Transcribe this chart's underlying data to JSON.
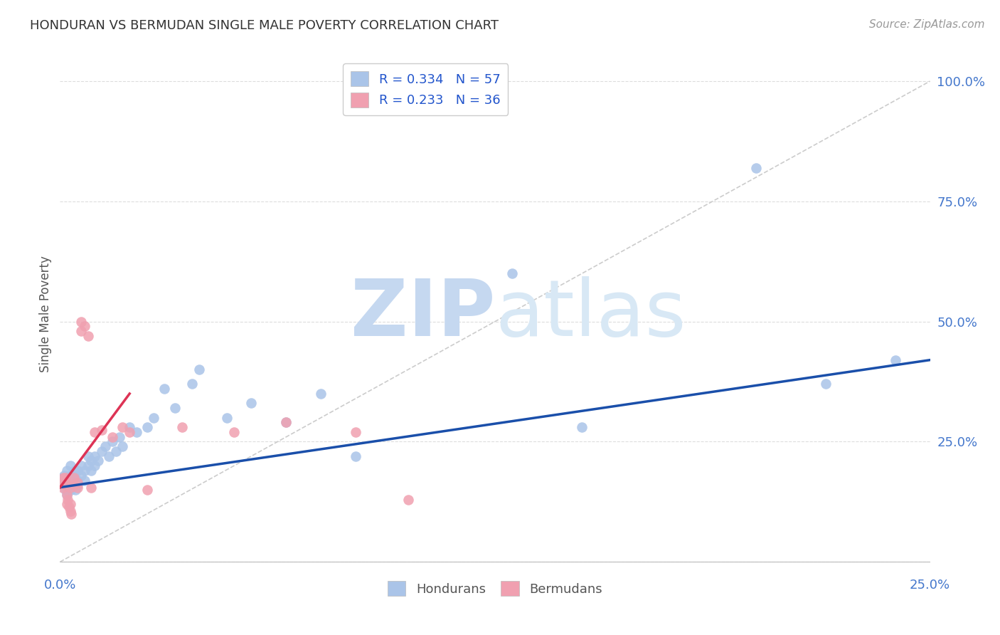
{
  "title": "HONDURAN VS BERMUDAN SINGLE MALE POVERTY CORRELATION CHART",
  "source": "Source: ZipAtlas.com",
  "ylabel": "Single Male Poverty",
  "background_color": "#ffffff",
  "grid_color": "#dddddd",
  "honduran_color": "#aac4e8",
  "bermudan_color": "#f0a0b0",
  "honduran_line_color": "#1a4faa",
  "bermudan_line_color": "#dd3355",
  "R_honduran": 0.334,
  "N_honduran": 57,
  "R_bermudan": 0.233,
  "N_bermudan": 36,
  "legend_text_color": "#2255cc",
  "axis_color": "#4477cc",
  "title_color": "#333333",
  "xlim": [
    0.0,
    0.25
  ],
  "ylim": [
    -0.02,
    1.05
  ],
  "honduran_scatter_x": [
    0.0008,
    0.001,
    0.0012,
    0.0015,
    0.0015,
    0.002,
    0.002,
    0.0022,
    0.0025,
    0.003,
    0.003,
    0.003,
    0.0032,
    0.0035,
    0.004,
    0.004,
    0.0042,
    0.0045,
    0.005,
    0.005,
    0.005,
    0.006,
    0.006,
    0.007,
    0.007,
    0.008,
    0.008,
    0.009,
    0.009,
    0.01,
    0.01,
    0.011,
    0.012,
    0.013,
    0.014,
    0.015,
    0.016,
    0.017,
    0.018,
    0.02,
    0.022,
    0.025,
    0.027,
    0.03,
    0.033,
    0.038,
    0.04,
    0.048,
    0.055,
    0.065,
    0.075,
    0.085,
    0.13,
    0.15,
    0.2,
    0.22,
    0.24
  ],
  "honduran_scatter_y": [
    0.175,
    0.16,
    0.18,
    0.15,
    0.17,
    0.14,
    0.19,
    0.16,
    0.15,
    0.18,
    0.16,
    0.2,
    0.15,
    0.17,
    0.16,
    0.18,
    0.19,
    0.15,
    0.17,
    0.16,
    0.19,
    0.18,
    0.2,
    0.17,
    0.19,
    0.2,
    0.22,
    0.19,
    0.21,
    0.2,
    0.22,
    0.21,
    0.23,
    0.24,
    0.22,
    0.25,
    0.23,
    0.26,
    0.24,
    0.28,
    0.27,
    0.28,
    0.3,
    0.36,
    0.32,
    0.37,
    0.4,
    0.3,
    0.33,
    0.29,
    0.35,
    0.22,
    0.6,
    0.28,
    0.82,
    0.37,
    0.42
  ],
  "bermudan_scatter_x": [
    0.0005,
    0.0008,
    0.001,
    0.001,
    0.0012,
    0.0015,
    0.0015,
    0.002,
    0.002,
    0.002,
    0.0022,
    0.0025,
    0.003,
    0.003,
    0.003,
    0.0032,
    0.004,
    0.004,
    0.005,
    0.005,
    0.006,
    0.006,
    0.007,
    0.008,
    0.009,
    0.01,
    0.012,
    0.015,
    0.018,
    0.02,
    0.025,
    0.035,
    0.05,
    0.065,
    0.085,
    0.1
  ],
  "bermudan_scatter_y": [
    0.165,
    0.155,
    0.17,
    0.175,
    0.16,
    0.17,
    0.175,
    0.16,
    0.14,
    0.12,
    0.13,
    0.115,
    0.155,
    0.12,
    0.105,
    0.1,
    0.175,
    0.16,
    0.155,
    0.165,
    0.5,
    0.48,
    0.49,
    0.47,
    0.155,
    0.27,
    0.275,
    0.26,
    0.28,
    0.27,
    0.15,
    0.28,
    0.27,
    0.29,
    0.27,
    0.13
  ],
  "honduran_line_x": [
    0.0,
    0.25
  ],
  "honduran_line_y": [
    0.155,
    0.42
  ],
  "bermudan_line_x": [
    0.0,
    0.02
  ],
  "bermudan_line_y": [
    0.155,
    0.35
  ],
  "diag_line_x": [
    0.0,
    0.25
  ],
  "diag_line_y": [
    0.0,
    1.0
  ]
}
